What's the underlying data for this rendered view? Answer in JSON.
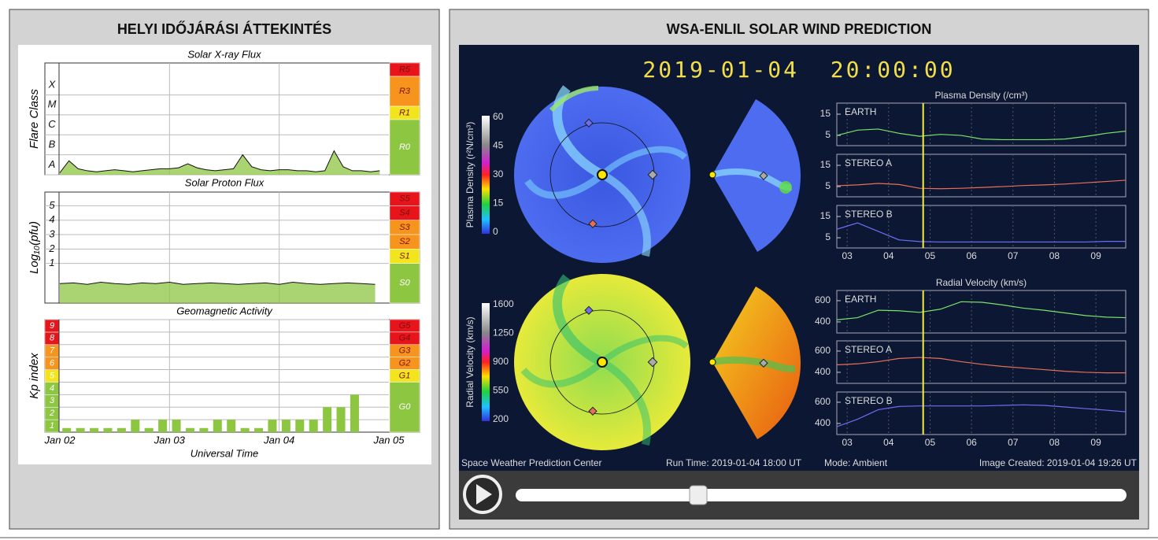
{
  "left_panel": {
    "title": "HELYI IDŐJÁRÁSI ÁTTEKINTÉS"
  },
  "right_panel": {
    "title": "WSA-ENLIL SOLAR WIND PREDICTION",
    "timestamp": "2019-01-04  20:00:00",
    "density_colorbar": {
      "label": "Plasma Density (r²N/cm³)",
      "ticks": [
        60,
        45,
        30,
        15,
        0
      ]
    },
    "velocity_colorbar": {
      "label": "Radial Velocity (km/s)",
      "ticks": [
        1600,
        1250,
        900,
        550,
        200
      ]
    },
    "footer": {
      "source": "Space Weather Prediction Center",
      "run_time": "Run Time: 2019-01-04 18:00 UT",
      "mode": "Mode: Ambient",
      "created": "Image Created: 2019-01-04 19:26 UT"
    }
  },
  "chart_data": [
    {
      "type": "area",
      "title": "Solar X-ray Flux",
      "y_label": "Flare Class",
      "x": [
        0,
        2,
        4,
        6,
        8,
        10,
        12,
        14,
        16,
        18,
        20,
        22,
        24,
        26,
        28,
        30,
        32,
        34,
        36,
        38,
        40,
        42,
        44,
        46,
        48,
        50,
        52,
        54,
        56,
        58,
        60,
        62,
        64,
        66,
        68,
        70
      ],
      "values": [
        -7.9,
        -7.3,
        -7.7,
        -7.8,
        -7.85,
        -7.8,
        -7.75,
        -7.8,
        -7.85,
        -7.8,
        -7.75,
        -7.7,
        -7.7,
        -7.65,
        -7.45,
        -7.65,
        -7.75,
        -7.8,
        -7.75,
        -7.7,
        -7.0,
        -7.6,
        -7.75,
        -7.8,
        -7.75,
        -7.75,
        -7.8,
        -7.8,
        -7.85,
        -7.8,
        -6.8,
        -7.6,
        -7.8,
        -7.8,
        -7.85,
        -7.8
      ],
      "color": "#8dc641",
      "line_color": "#111111",
      "xlim": [
        0,
        72
      ],
      "ylim": [
        -8,
        -2.4
      ],
      "yticks": [
        {
          "value": -8,
          "label": "A"
        },
        {
          "value": -7,
          "label": "B"
        },
        {
          "value": -6,
          "label": "C"
        },
        {
          "value": -5,
          "label": "M"
        },
        {
          "value": -4,
          "label": "X"
        }
      ],
      "tick_label_position": "above",
      "scale": [
        {
          "label": "R5",
          "from": -3.07,
          "to": -2.4,
          "color": "#e8141b"
        },
        {
          "label": "R3",
          "from": -4.57,
          "to": -3.07,
          "color": "#f7941d"
        },
        {
          "label": "R1",
          "from": -5.24,
          "to": -4.57,
          "color": "#f2e51e"
        },
        {
          "label": "R0",
          "from": -8,
          "to": -5.24,
          "color": "#8dc641"
        }
      ]
    },
    {
      "type": "area",
      "title": "Solar Proton Flux",
      "y_label": "Log₁₀(pfu)",
      "x": [
        0,
        3,
        6,
        9,
        12,
        15,
        18,
        21,
        24,
        27,
        30,
        33,
        36,
        39,
        42,
        45,
        48,
        51,
        54,
        57,
        60,
        63,
        66,
        69
      ],
      "values": [
        -0.4,
        -0.35,
        -0.45,
        -0.3,
        -0.4,
        -0.45,
        -0.35,
        -0.4,
        -0.3,
        -0.45,
        -0.4,
        -0.35,
        -0.4,
        -0.45,
        -0.4,
        -0.35,
        -0.45,
        -0.3,
        -0.4,
        -0.45,
        -0.4,
        -0.35,
        -0.4,
        -0.45
      ],
      "color": "#8dc641",
      "line_color": "#111111",
      "xlim": [
        0,
        72
      ],
      "ylim": [
        -1.75,
        5.95
      ],
      "yticks": [
        1,
        2,
        3,
        4,
        5
      ],
      "tick_label_position": "on",
      "scale": [
        {
          "label": "S5",
          "from": 5,
          "to": 5.95,
          "color": "#e8141b"
        },
        {
          "label": "S4",
          "from": 4,
          "to": 5,
          "color": "#e8141b"
        },
        {
          "label": "S3",
          "from": 3,
          "to": 4,
          "color": "#f7941d"
        },
        {
          "label": "S2",
          "from": 2,
          "to": 3,
          "color": "#f7941d"
        },
        {
          "label": "S1",
          "from": 1,
          "to": 2,
          "color": "#f2e51e"
        },
        {
          "label": "S0",
          "from": -1.75,
          "to": 1,
          "color": "#8dc641"
        }
      ]
    },
    {
      "type": "bar",
      "title": "Geomagnetic Activity",
      "y_label": "Kp index",
      "x_label": "Universal Time",
      "x": [
        1.5,
        4.5,
        7.5,
        10.5,
        13.5,
        16.5,
        19.5,
        22.5,
        25.5,
        28.5,
        31.5,
        34.5,
        37.5,
        40.5,
        43.5,
        46.5,
        49.5,
        52.5,
        55.5,
        58.5,
        61.5,
        64.5,
        67.5,
        70.5
      ],
      "values": [
        0.33,
        0.33,
        0.33,
        0.33,
        0.33,
        1,
        0.33,
        1,
        1,
        0.33,
        0.33,
        1,
        1,
        0.33,
        0.33,
        1,
        1,
        1,
        1,
        2,
        2,
        3,
        null,
        null
      ],
      "color": "#8dc641",
      "xlim": [
        0,
        72
      ],
      "ylim": [
        0,
        9
      ],
      "xticks": [
        {
          "value": 0,
          "label": "Jan 02"
        },
        {
          "value": 24,
          "label": "Jan 03"
        },
        {
          "value": 48,
          "label": "Jan 04"
        },
        {
          "value": 72,
          "label": "Jan 05"
        }
      ],
      "yticks": [
        1,
        2,
        3,
        4,
        5,
        6,
        7,
        8,
        9
      ],
      "tick_label_position": "below",
      "tick_colors": [
        "#8dc641",
        "#8dc641",
        "#8dc641",
        "#8dc641",
        "#f2e51e",
        "#f7941d",
        "#f7941d",
        "#e8141b",
        "#e8141b"
      ],
      "scale": [
        {
          "label": "G5",
          "from": 8,
          "to": 9,
          "color": "#e8141b"
        },
        {
          "label": "G4",
          "from": 7,
          "to": 8,
          "color": "#e8141b"
        },
        {
          "label": "G3",
          "from": 6,
          "to": 7,
          "color": "#f7941d"
        },
        {
          "label": "G2",
          "from": 5,
          "to": 6,
          "color": "#f7941d"
        },
        {
          "label": "G1",
          "from": 4,
          "to": 5,
          "color": "#f2e51e"
        },
        {
          "label": "G0",
          "from": 0,
          "to": 4,
          "color": "#8dc641"
        }
      ]
    },
    {
      "type": "line",
      "title": "Plasma Density (/cm³)",
      "x": [
        2.75,
        3.25,
        3.75,
        4.25,
        4.75,
        5.25,
        5.75,
        6.25,
        6.75,
        7.25,
        7.75,
        8.25,
        8.75,
        9.25,
        9.72
      ],
      "xlim": [
        2.75,
        9.72
      ],
      "ylim": [
        0.2,
        20.2
      ],
      "yticks": [
        5,
        15
      ],
      "xticks": [
        {
          "value": 3,
          "label": "03"
        },
        {
          "value": 4,
          "label": "04"
        },
        {
          "value": 5,
          "label": "05"
        },
        {
          "value": 6,
          "label": "06"
        },
        {
          "value": 7,
          "label": "07"
        },
        {
          "value": 8,
          "label": "08"
        },
        {
          "value": 9,
          "label": "09"
        }
      ],
      "marker_x": 4.833,
      "marker_color": "#f5ef3a",
      "series": [
        {
          "name": "EARTH",
          "color": "#7be36b",
          "values": [
            5,
            7.5,
            8,
            6,
            4.6,
            5.5,
            5,
            3.3,
            3,
            3,
            3,
            3.3,
            4.5,
            6,
            7
          ]
        },
        {
          "name": "STEREO A",
          "color": "#e8705a",
          "values": [
            5.4,
            5.8,
            6.5,
            6,
            4.2,
            4,
            4.2,
            4.6,
            5,
            5.5,
            5.8,
            6.2,
            6.8,
            7.4,
            8
          ]
        },
        {
          "name": "STEREO B",
          "color": "#6f6df0",
          "values": [
            9,
            12,
            8,
            4,
            3.2,
            3,
            3,
            3,
            3,
            3,
            3,
            3,
            3,
            3.3,
            3.3
          ]
        }
      ]
    },
    {
      "type": "line",
      "title": "Radial Velocity (km/s)",
      "x": [
        2.75,
        3.25,
        3.75,
        4.25,
        4.75,
        5.25,
        5.75,
        6.25,
        6.75,
        7.25,
        7.75,
        8.25,
        8.75,
        9.25,
        9.72
      ],
      "xlim": [
        2.75,
        9.72
      ],
      "ylim": [
        296,
        696
      ],
      "yticks": [
        400,
        600
      ],
      "xticks": [
        {
          "value": 3,
          "label": "03"
        },
        {
          "value": 4,
          "label": "04"
        },
        {
          "value": 5,
          "label": "05"
        },
        {
          "value": 6,
          "label": "06"
        },
        {
          "value": 7,
          "label": "07"
        },
        {
          "value": 8,
          "label": "08"
        },
        {
          "value": 9,
          "label": "09"
        }
      ],
      "marker_x": 4.833,
      "marker_color": "#f5ef3a",
      "series": [
        {
          "name": "EARTH",
          "color": "#7be36b",
          "values": [
            420,
            440,
            510,
            505,
            490,
            520,
            590,
            585,
            560,
            530,
            510,
            485,
            460,
            445,
            440
          ]
        },
        {
          "name": "STEREO A",
          "color": "#e8705a",
          "values": [
            470,
            480,
            500,
            530,
            540,
            530,
            500,
            475,
            455,
            440,
            425,
            410,
            400,
            395,
            395
          ]
        },
        {
          "name": "STEREO B",
          "color": "#6f6df0",
          "values": [
            370,
            440,
            530,
            560,
            565,
            565,
            565,
            565,
            570,
            575,
            570,
            555,
            540,
            525,
            510
          ]
        }
      ]
    }
  ]
}
